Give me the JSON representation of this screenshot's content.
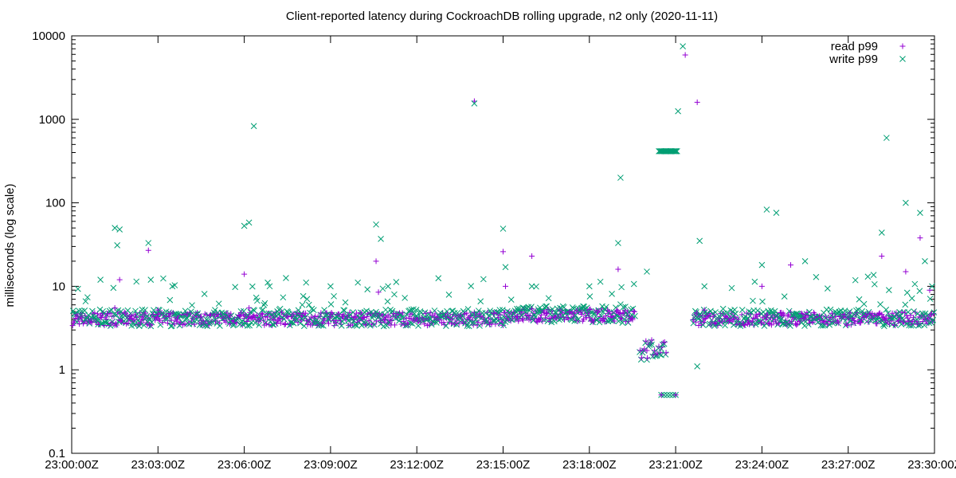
{
  "chart_data": {
    "type": "scatter",
    "title": "Client-reported latency during CockroachDB rolling upgrade, n2 only (2020-11-11)",
    "ylabel": "milliseconds (log scale)",
    "xlabel": "",
    "y_scale": "log",
    "ylim": [
      0.1,
      10000
    ],
    "xlim": [
      "23:00:00Z",
      "23:30:00Z"
    ],
    "y_ticks": [
      "0.1",
      "1",
      "10",
      "100",
      "1000",
      "10000"
    ],
    "x_ticks": [
      "23:00:00Z",
      "23:03:00Z",
      "23:06:00Z",
      "23:09:00Z",
      "23:12:00Z",
      "23:15:00Z",
      "23:18:00Z",
      "23:21:00Z",
      "23:24:00Z",
      "23:27:00Z",
      "23:30:00Z"
    ],
    "grid": false,
    "legend_position": "top-right",
    "series": [
      {
        "name": "read p99",
        "marker": "+",
        "color": "#9400d3",
        "points": [
          [
            "23:00:20Z",
            4.2
          ],
          [
            "23:01:00Z",
            4.5
          ],
          [
            "23:01:30Z",
            5.5
          ],
          [
            "23:01:40Z",
            12
          ],
          [
            "23:02:00Z",
            4.1
          ],
          [
            "23:02:40Z",
            27
          ],
          [
            "23:03:00Z",
            5.2
          ],
          [
            "23:03:40Z",
            4.0
          ],
          [
            "23:04:30Z",
            4.3
          ],
          [
            "23:05:00Z",
            3.9
          ],
          [
            "23:05:30Z",
            4.4
          ],
          [
            "23:06:00Z",
            14
          ],
          [
            "23:06:10Z",
            5.5
          ],
          [
            "23:07:00Z",
            4.2
          ],
          [
            "23:08:00Z",
            4.0
          ],
          [
            "23:09:00Z",
            4.3
          ],
          [
            "23:10:00Z",
            4.1
          ],
          [
            "23:10:35Z",
            20
          ],
          [
            "23:10:40Z",
            8.5
          ],
          [
            "23:11:00Z",
            4.5
          ],
          [
            "23:12:00Z",
            4.2
          ],
          [
            "23:13:00Z",
            4.4
          ],
          [
            "23:14:00Z",
            1650
          ],
          [
            "23:15:00Z",
            26
          ],
          [
            "23:15:05Z",
            10
          ],
          [
            "23:15:30Z",
            4.3
          ],
          [
            "23:16:00Z",
            23
          ],
          [
            "23:16:30Z",
            4.8
          ],
          [
            "23:17:00Z",
            4.6
          ],
          [
            "23:18:00Z",
            4.2
          ],
          [
            "23:18:30Z",
            4.1
          ],
          [
            "23:19:00Z",
            16
          ],
          [
            "23:19:30Z",
            4.0
          ],
          [
            "23:20:00Z",
            1.7
          ],
          [
            "23:20:30Z",
            0.5
          ],
          [
            "23:21:00Z",
            0.5
          ],
          [
            "23:21:20Z",
            5900
          ],
          [
            "23:21:45Z",
            1600
          ],
          [
            "23:22:00Z",
            5.2
          ],
          [
            "23:23:00Z",
            4.3
          ],
          [
            "23:24:00Z",
            10
          ],
          [
            "23:24:10Z",
            4.5
          ],
          [
            "23:25:00Z",
            18
          ],
          [
            "23:25:30Z",
            4.2
          ],
          [
            "23:26:00Z",
            4.4
          ],
          [
            "23:27:00Z",
            4.1
          ],
          [
            "23:28:00Z",
            4.5
          ],
          [
            "23:28:10Z",
            23
          ],
          [
            "23:29:00Z",
            15
          ],
          [
            "23:29:30Z",
            38
          ],
          [
            "23:29:50Z",
            9
          ]
        ]
      },
      {
        "name": "write p99",
        "marker": "x",
        "color": "#009e73",
        "points": [
          [
            "23:00:30Z",
            4.0
          ],
          [
            "23:01:00Z",
            12
          ],
          [
            "23:01:30Z",
            50
          ],
          [
            "23:01:40Z",
            48
          ],
          [
            "23:01:35Z",
            31
          ],
          [
            "23:02:40Z",
            33
          ],
          [
            "23:02:45Z",
            12
          ],
          [
            "23:03:30Z",
            10
          ],
          [
            "23:04:00Z",
            4.2
          ],
          [
            "23:05:00Z",
            4.0
          ],
          [
            "23:06:00Z",
            53
          ],
          [
            "23:06:10Z",
            58
          ],
          [
            "23:06:20Z",
            830
          ],
          [
            "23:07:00Z",
            4.3
          ],
          [
            "23:08:00Z",
            4.1
          ],
          [
            "23:09:00Z",
            10
          ],
          [
            "23:10:00Z",
            4.2
          ],
          [
            "23:10:35Z",
            55
          ],
          [
            "23:10:45Z",
            37
          ],
          [
            "23:11:00Z",
            10
          ],
          [
            "23:12:00Z",
            4.4
          ],
          [
            "23:13:00Z",
            4.3
          ],
          [
            "23:14:00Z",
            1550
          ],
          [
            "23:15:00Z",
            49
          ],
          [
            "23:15:05Z",
            17
          ],
          [
            "23:16:00Z",
            10
          ],
          [
            "23:17:00Z",
            4.9
          ],
          [
            "23:18:00Z",
            10
          ],
          [
            "23:19:00Z",
            33
          ],
          [
            "23:19:05Z",
            200
          ],
          [
            "23:20:00Z",
            15
          ],
          [
            "23:20:10Z",
            2.0
          ],
          [
            "23:20:30Z",
            1.5
          ],
          [
            "23:20:40Z",
            415
          ],
          [
            "23:21:00Z",
            415
          ],
          [
            "23:21:05Z",
            1250
          ],
          [
            "23:21:15Z",
            7500
          ],
          [
            "23:21:50Z",
            35
          ],
          [
            "23:21:45Z",
            1.1
          ],
          [
            "23:22:00Z",
            10
          ],
          [
            "23:23:00Z",
            4.4
          ],
          [
            "23:24:00Z",
            18
          ],
          [
            "23:24:10Z",
            83
          ],
          [
            "23:24:30Z",
            76
          ],
          [
            "23:25:30Z",
            20
          ],
          [
            "23:26:00Z",
            4.2
          ],
          [
            "23:27:00Z",
            4.3
          ],
          [
            "23:28:10Z",
            44
          ],
          [
            "23:28:20Z",
            600
          ],
          [
            "23:29:00Z",
            100
          ],
          [
            "23:29:30Z",
            76
          ],
          [
            "23:29:40Z",
            20
          ],
          [
            "23:29:55Z",
            10
          ]
        ]
      }
    ]
  }
}
